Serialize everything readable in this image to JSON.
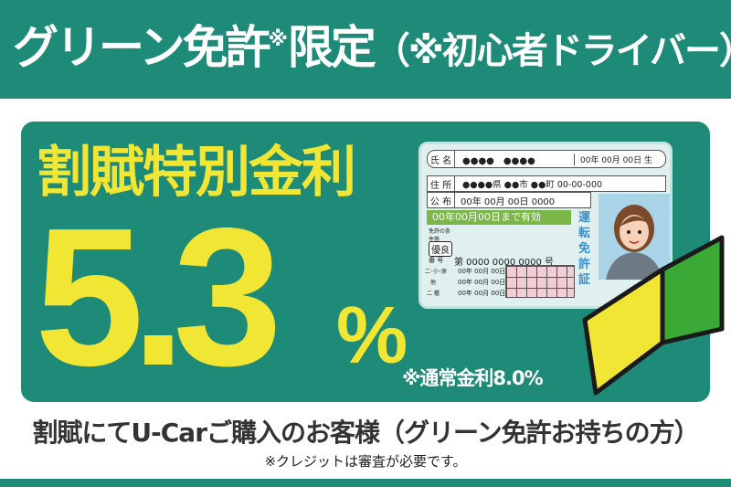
{
  "header": {
    "title_main": "グリーン免許",
    "title_mark": "※",
    "title_limited": "限定",
    "title_paren": "（※初心者ドライバー）"
  },
  "offer": {
    "lead": "割賦特別金利",
    "rate": "5.3",
    "percent": "%",
    "normal_rate": "※通常金利8.0%"
  },
  "license_card": {
    "name_label": "氏 名",
    "name_value": "●●●●　●●●●",
    "birth": "00年 00月 00日 生",
    "address_label": "住 所",
    "address_value": "●●●●県 ●●市 ●●町 00-00-000",
    "issue_label": "公 布",
    "issue_value": "00年 00月 00日 0000",
    "valid_until": "00年00月00日まで有効",
    "conditions_label": "免許の条件等",
    "grade": "優良",
    "number_label": "番 号",
    "number_value": "第 0000 0000 0000 号",
    "class_rows": [
      {
        "label": "二･小･原",
        "date": "00年 00月 00日"
      },
      {
        "label": "他",
        "date": "00年 00月 00日"
      },
      {
        "label": "二 種",
        "date": "00年 00月 00日"
      }
    ],
    "card_type": "運転免許証"
  },
  "colors": {
    "brand_teal": "#1e8a78",
    "accent_yellow": "#f2e634",
    "mark_green": "#3aa935"
  },
  "footer": {
    "headline": "割賦にてU-Carご購入のお客様（グリーン免許お持ちの方）",
    "note": "※クレジットは審査が必要です。"
  }
}
